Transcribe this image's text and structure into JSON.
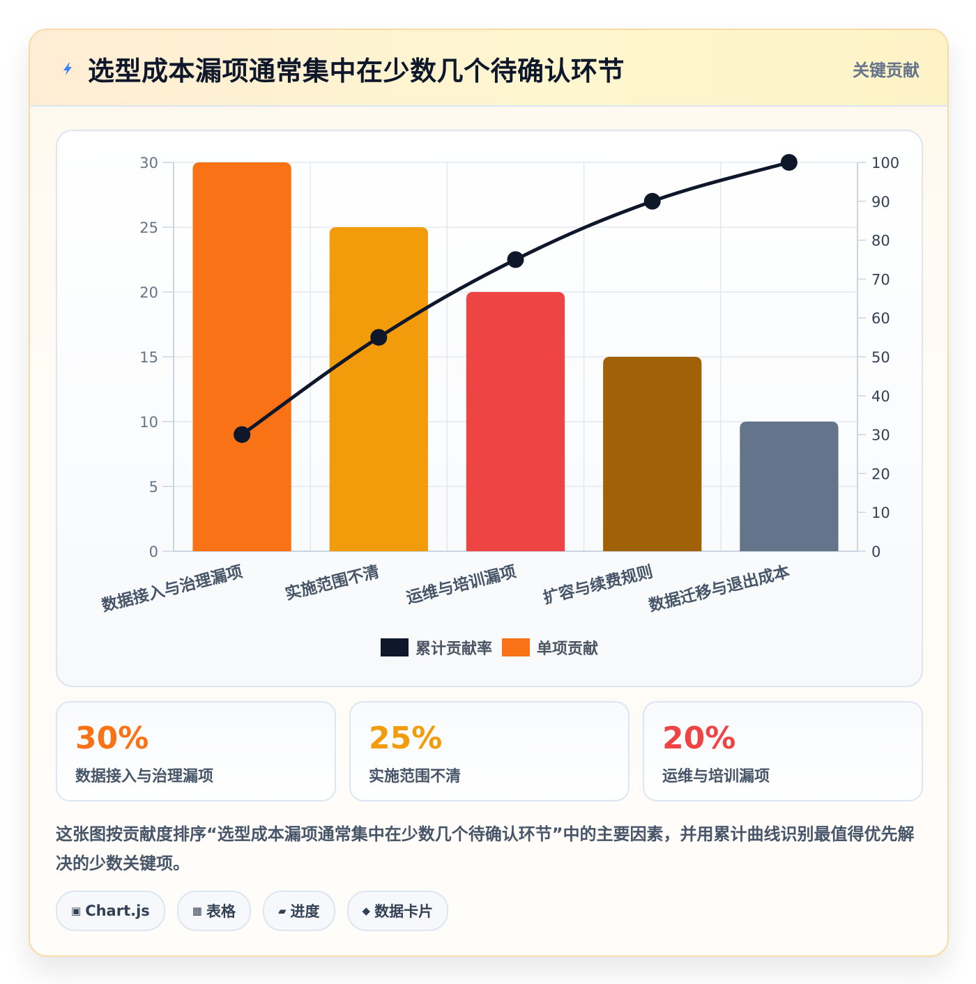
{
  "header": {
    "title": "选型成本漏项通常集中在少数几个待确认环节",
    "badge": "关键贡献"
  },
  "colors": {
    "orange": "#f97316",
    "amber": "#f39c0b",
    "red": "#ef4444",
    "brown": "#a16207",
    "slate": "#64748b",
    "navy": "#0f172a"
  },
  "chart_data": {
    "type": "bar",
    "categories": [
      "数据接入与治理漏项",
      "实施范围不清",
      "运维与培训漏项",
      "扩容与续费规则",
      "数据迁移与退出成本"
    ],
    "series": [
      {
        "name": "单项贡献",
        "type": "bar",
        "axis": "left",
        "values": [
          30,
          25,
          20,
          15,
          10
        ],
        "colors": [
          "#f97316",
          "#f39c0b",
          "#ef4444",
          "#a16207",
          "#64748b"
        ]
      },
      {
        "name": "累计贡献率",
        "type": "line",
        "axis": "right",
        "values": [
          30,
          55,
          75,
          90,
          100
        ],
        "color": "#0f172a"
      }
    ],
    "y_left": {
      "min": 0,
      "max": 30,
      "ticks": [
        0,
        5,
        10,
        15,
        20,
        25,
        30
      ]
    },
    "y_right": {
      "min": 0,
      "max": 100,
      "ticks": [
        0,
        10,
        20,
        30,
        40,
        50,
        60,
        70,
        80,
        90,
        100
      ]
    },
    "grid": true,
    "legend": [
      "累计贡献率",
      "单项贡献"
    ],
    "legend_position": "bottom"
  },
  "stats": [
    {
      "value": "30%",
      "label": "数据接入与治理漏项",
      "color": "#f97316"
    },
    {
      "value": "25%",
      "label": "实施范围不清",
      "color": "#f39c0b"
    },
    {
      "value": "20%",
      "label": "运维与培训漏项",
      "color": "#ef4444"
    }
  ],
  "description": "这张图按贡献度排序“选型成本漏项通常集中在少数几个待确认环节”中的主要因素，并用累计曲线识别最值得优先解决的少数关键项。",
  "tags": [
    {
      "icon": "▣",
      "icon_name": "chart-icon",
      "label": "Chart.js"
    },
    {
      "icon": "▦",
      "icon_name": "table-icon",
      "label": "表格"
    },
    {
      "icon": "▰",
      "icon_name": "progress-icon",
      "label": "进度"
    },
    {
      "icon": "◆",
      "icon_name": "diamond-icon",
      "label": "数据卡片"
    }
  ]
}
